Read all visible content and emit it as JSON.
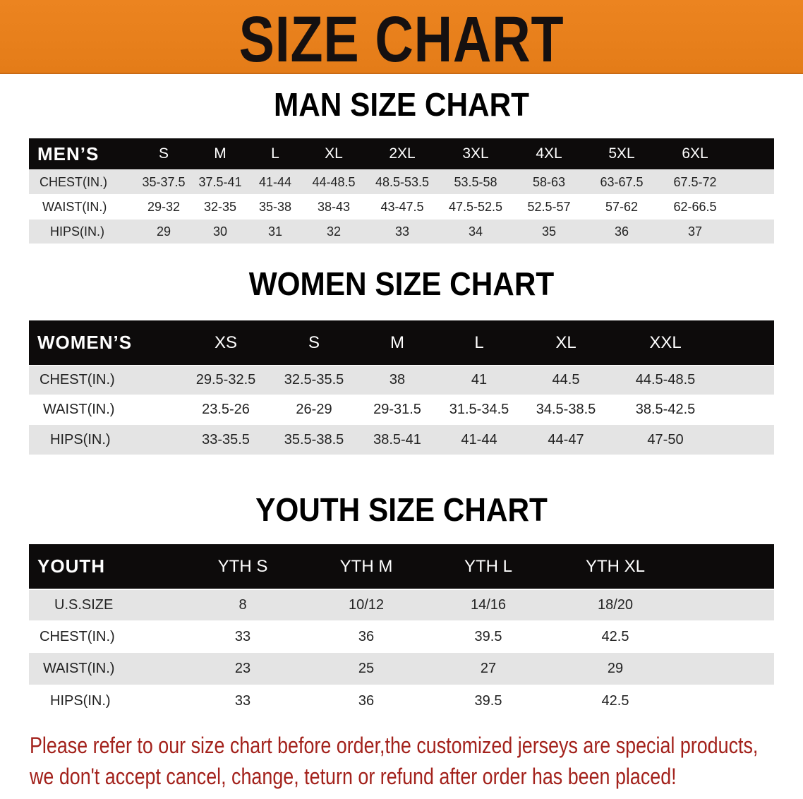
{
  "banner": {
    "title": "SIZE CHART",
    "color": "#e8801e"
  },
  "men": {
    "title": "MAN SIZE CHART",
    "header": [
      "MEN’S",
      "S",
      "M",
      "L",
      "XL",
      "2XL",
      "3XL",
      "4XL",
      "5XL",
      "6XL"
    ],
    "rows": [
      [
        "CHEST(IN.)",
        "35-37.5",
        "37.5-41",
        "41-44",
        "44-48.5",
        "48.5-53.5",
        "53.5-58",
        "58-63",
        "63-67.5",
        "67.5-72"
      ],
      [
        "WAIST(IN.)",
        "29-32",
        "32-35",
        "35-38",
        "38-43",
        "43-47.5",
        "47.5-52.5",
        "52.5-57",
        "57-62",
        "62-66.5"
      ],
      [
        "HIPS(IN.)",
        "29",
        "30",
        "31",
        "32",
        "33",
        "34",
        "35",
        "36",
        "37"
      ]
    ]
  },
  "women": {
    "title": "WOMEN SIZE CHART",
    "header": [
      "WOMEN’S",
      "XS",
      "S",
      "M",
      "L",
      "XL",
      "XXL"
    ],
    "rows": [
      [
        "CHEST(IN.)",
        "29.5-32.5",
        "32.5-35.5",
        "38",
        "41",
        "44.5",
        "44.5-48.5"
      ],
      [
        "WAIST(IN.)",
        "23.5-26",
        "26-29",
        "29-31.5",
        "31.5-34.5",
        "34.5-38.5",
        "38.5-42.5"
      ],
      [
        "HIPS(IN.)",
        "33-35.5",
        "35.5-38.5",
        "38.5-41",
        "41-44",
        "44-47",
        "47-50"
      ]
    ]
  },
  "youth": {
    "title": "YOUTH SIZE CHART",
    "header": [
      "YOUTH",
      "YTH S",
      "YTH M",
      "YTH L",
      "YTH XL"
    ],
    "rows": [
      [
        "U.S.SIZE",
        "8",
        "10/12",
        "14/16",
        "18/20"
      ],
      [
        "CHEST(IN.)",
        "33",
        "36",
        "39.5",
        "42.5"
      ],
      [
        "WAIST(IN.)",
        "23",
        "25",
        "27",
        "29"
      ],
      [
        "HIPS(IN.)",
        "33",
        "36",
        "39.5",
        "42.5"
      ]
    ]
  },
  "notice": {
    "line1": "Please refer to our size chart before order,the customized jerseys are special products,",
    "line2": "we don't accept cancel, change, teturn or refund after order has been placed!",
    "color": "#a3221c"
  }
}
